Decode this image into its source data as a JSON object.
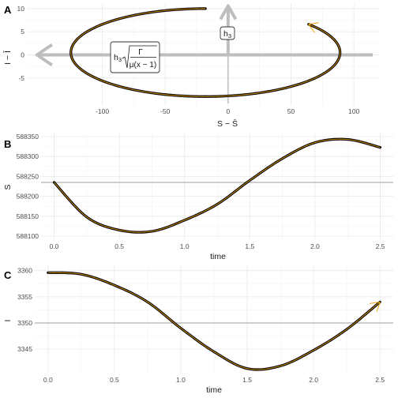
{
  "chart_data": [
    {
      "panel_label": "A",
      "type": "line",
      "xlabel": "S − S̄",
      "ylabel": "I − Ī",
      "xlim": [
        -160,
        120
      ],
      "ylim": [
        -11,
        11
      ],
      "x_ticks": [
        -100,
        -50,
        0,
        50,
        100
      ],
      "y_ticks": [
        -5,
        0,
        5,
        10
      ],
      "grid": true,
      "ellipse": {
        "center": [
          -18,
          0.5
        ],
        "semi_x": 107,
        "semi_y": 9.5
      },
      "trajectory": {
        "start_angle_deg": 90,
        "end_angle_deg": 450,
        "points": 60,
        "end_arrow": true
      },
      "annotations": {
        "h3_label": "h",
        "h3_sub": "3",
        "formula_sqrt_numerator": "Γ",
        "formula_denominator": "μ(x − 1)"
      },
      "colors": {
        "path": "#000000",
        "overlay": "#E69F00",
        "reference": "#bebebe"
      }
    },
    {
      "panel_label": "B",
      "type": "line",
      "xlabel": "time",
      "ylabel": "S",
      "xlim": [
        -0.1,
        2.6
      ],
      "ylim": [
        588092,
        588360
      ],
      "x_ticks": [
        0.0,
        0.5,
        1.0,
        1.5,
        2.0,
        2.5
      ],
      "x_tick_labels": [
        "0.0",
        "0.5",
        "1.0",
        "1.5",
        "2.0",
        "2.5"
      ],
      "y_ticks": [
        588100,
        588150,
        588200,
        588250,
        588300,
        588350
      ],
      "equilibrium": 588235,
      "series": {
        "x": [
          0.0,
          0.25,
          0.5,
          0.75,
          1.0,
          1.25,
          1.5,
          1.75,
          2.0,
          2.25,
          2.5
        ],
        "values": [
          588235,
          588148,
          588115,
          588112,
          588140,
          588180,
          588240,
          588295,
          588335,
          588343,
          588323
        ]
      },
      "grid": true
    },
    {
      "panel_label": "C",
      "type": "line",
      "xlabel": "time",
      "ylabel": "I",
      "xlim": [
        -0.1,
        2.6
      ],
      "ylim": [
        3340.5,
        3361
      ],
      "x_ticks": [
        0.0,
        0.5,
        1.0,
        1.5,
        2.0,
        2.5
      ],
      "x_tick_labels": [
        "0.0",
        "0.5",
        "1.0",
        "1.5",
        "2.0",
        "2.5"
      ],
      "y_ticks": [
        3345,
        3350,
        3355,
        3360
      ],
      "equilibrium": 3350,
      "series": {
        "x": [
          0.0,
          0.25,
          0.5,
          0.75,
          1.0,
          1.25,
          1.5,
          1.75,
          2.0,
          2.25,
          2.5
        ],
        "values": [
          3359.6,
          3359.3,
          3357.2,
          3354.0,
          3349.0,
          3344.5,
          3341.3,
          3341.8,
          3344.8,
          3348.8,
          3354.0
        ]
      },
      "grid": true
    }
  ]
}
